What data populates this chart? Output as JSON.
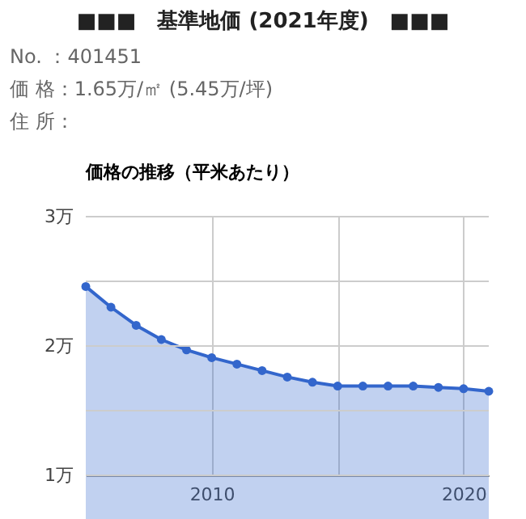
{
  "chart_data": {
    "type": "area",
    "title": "■■■　基準地価 (2021年度)　■■■",
    "subtitle": "価格の推移（平米あたり）",
    "annotations": [
      "No. ：401451",
      "価 格：1.65万/㎡ (5.45万/坪)",
      "住 所："
    ],
    "x": [
      2005,
      2006,
      2007,
      2008,
      2009,
      2010,
      2011,
      2012,
      2013,
      2014,
      2015,
      2016,
      2017,
      2018,
      2019,
      2020,
      2021
    ],
    "series": [
      {
        "color": "#3366cc",
        "values": [
          2.46,
          2.3,
          2.16,
          2.05,
          1.97,
          1.91,
          1.86,
          1.81,
          1.76,
          1.72,
          1.69,
          1.69,
          1.69,
          1.69,
          1.68,
          1.67,
          1.65
        ]
      }
    ],
    "xlim": [
      2005,
      2021
    ],
    "xticks": [
      2010,
      {
        "value": 2015,
        "label": null
      },
      2020
    ],
    "ylim": [
      1,
      3
    ],
    "yticks": [
      {
        "value": 1,
        "label": "1万"
      },
      {
        "value": 1.5,
        "label": null
      },
      {
        "value": 2,
        "label": "2万"
      },
      {
        "value": 2.5,
        "label": null
      },
      {
        "value": 3,
        "label": "3万"
      }
    ],
    "grid": true,
    "marker": "circle"
  }
}
